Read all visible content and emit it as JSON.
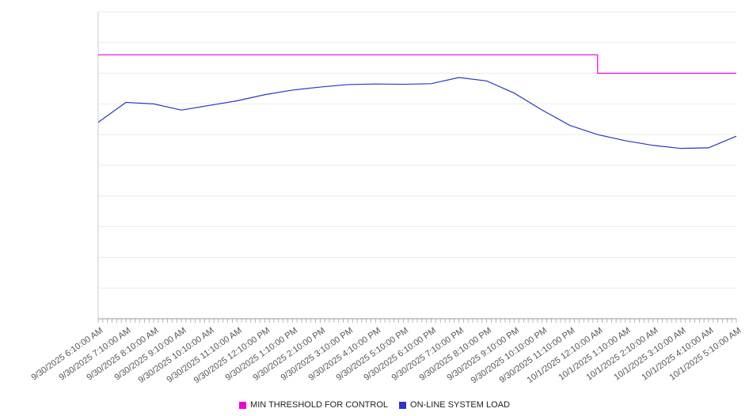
{
  "chart_data": {
    "type": "line",
    "title": "",
    "xlabel": "",
    "ylabel": "",
    "ylim": [
      0,
      100
    ],
    "grid_step": 10,
    "grid": true,
    "legend_position": "bottom",
    "x_labels": [
      "9/30/2025 6:10:00 AM",
      "9/30/2025 7:10:00 AM",
      "9/30/2025 8:10:00 AM",
      "9/30/2025 9:10:00 AM",
      "9/30/2025 10:10:00 AM",
      "9/30/2025 11:10:00 AM",
      "9/30/2025 12:10:00 PM",
      "9/30/2025 1:10:00 PM",
      "9/30/2025 2:10:00 PM",
      "9/30/2025 3:10:00 PM",
      "9/30/2025 4:10:00 PM",
      "9/30/2025 5:10:00 PM",
      "9/30/2025 6:10:00 PM",
      "9/30/2025 7:10:00 PM",
      "9/30/2025 8:10:00 PM",
      "9/30/2025 9:10:00 PM",
      "9/30/2025 10:10:00 PM",
      "9/30/2025 11:10:00 PM",
      "10/1/2025 12:10:00 AM",
      "10/1/2025 1:10:00 AM",
      "10/1/2025 2:10:00 AM",
      "10/1/2025 3:10:00 AM",
      "10/1/2025 4:10:00 AM",
      "10/1/2025 5:10:00 AM"
    ],
    "series": [
      {
        "name": "MIN THRESHOLD FOR CONTROL",
        "color": "#ee00dd",
        "step": true,
        "values": [
          86,
          86,
          86,
          86,
          86,
          86,
          86,
          86,
          86,
          86,
          86,
          86,
          86,
          86,
          86,
          86,
          86,
          86,
          80,
          80,
          80,
          80,
          80,
          80
        ]
      },
      {
        "name": "ON-LINE SYSTEM LOAD",
        "color": "#2a35c9",
        "step": false,
        "values": [
          64,
          70.5,
          70,
          68,
          69.5,
          71,
          73,
          74.5,
          75.5,
          76.3,
          76.5,
          76.4,
          76.6,
          78.6,
          77.5,
          73.5,
          68,
          63,
          60,
          58,
          56.5,
          55.5,
          55.7,
          59.5
        ]
      }
    ]
  },
  "axes": {
    "y_tick_labels_visible": false,
    "grid_color": "#ebebeb",
    "axis_color": "#999999"
  }
}
